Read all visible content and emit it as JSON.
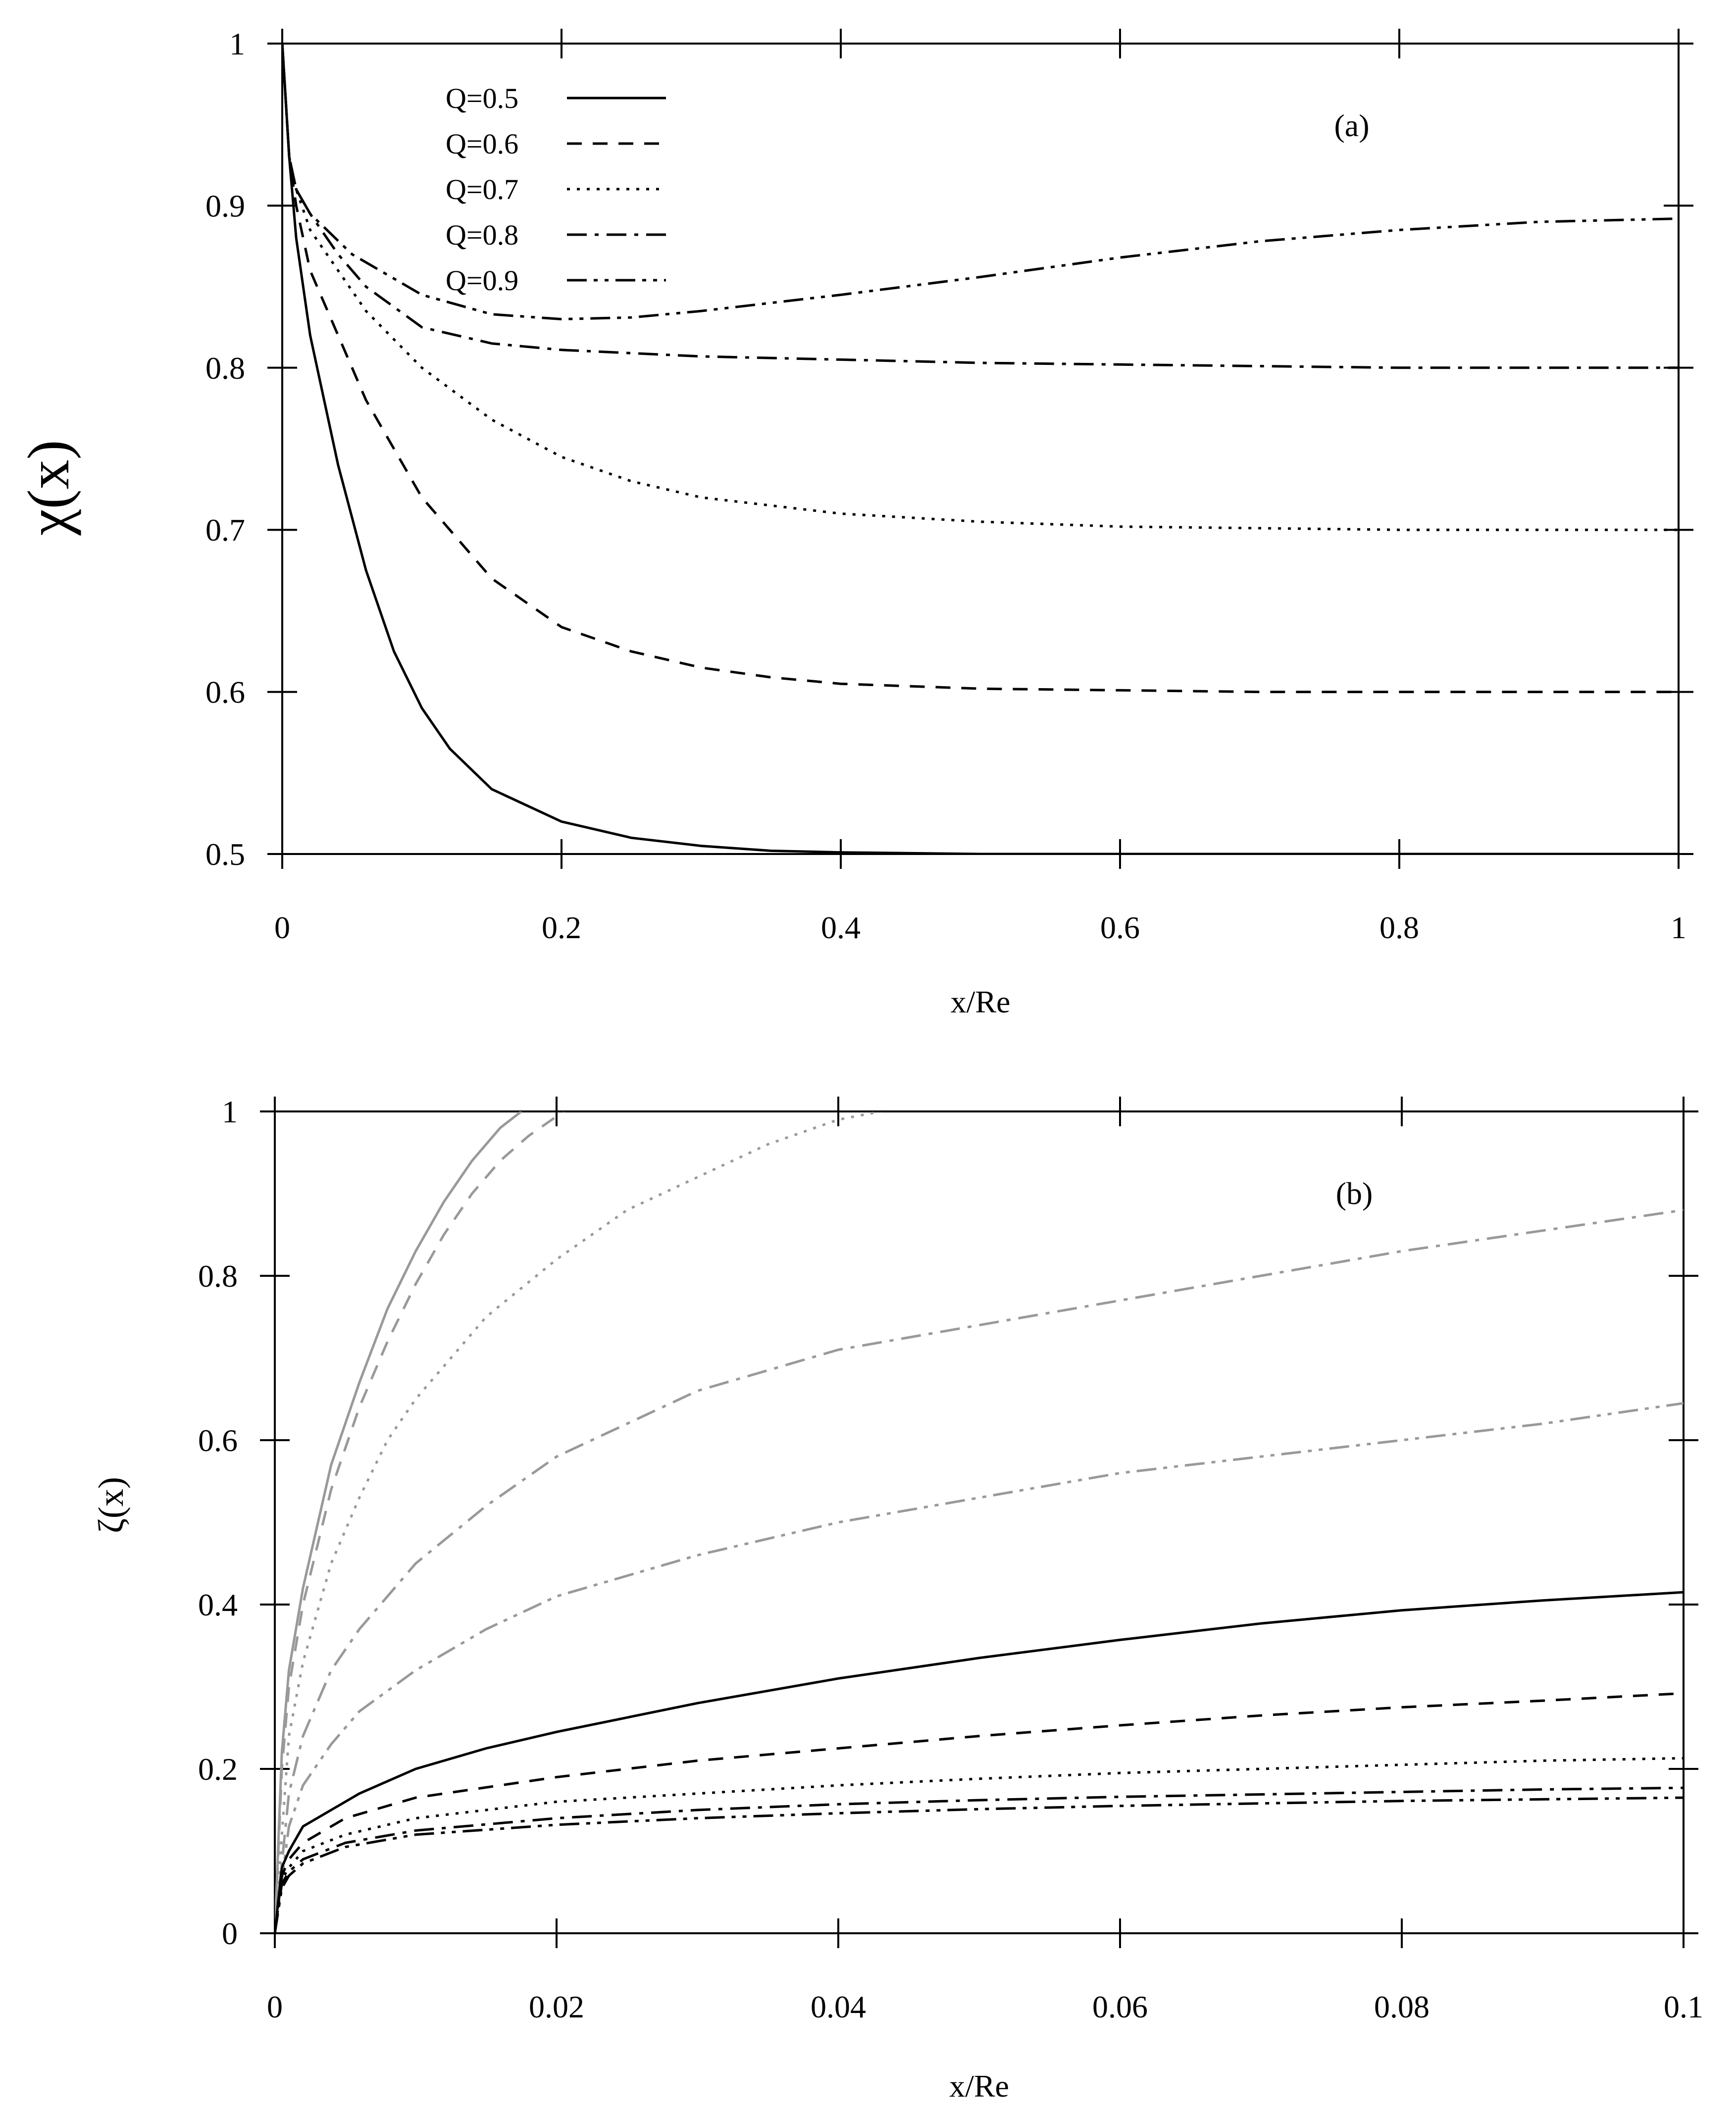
{
  "chart_data": [
    {
      "type": "line",
      "panel_label": "(a)",
      "xlabel": "x/Re",
      "ylabel": "χ(x)",
      "xlim": [
        0,
        1
      ],
      "ylim": [
        0.5,
        1
      ],
      "xticks": [
        "0",
        "0.2",
        "0.4",
        "0.6",
        "0.8",
        "1"
      ],
      "yticks": [
        "0.5",
        "0.6",
        "0.7",
        "0.8",
        "0.9",
        "1"
      ],
      "grid": false,
      "legend_position": "top-left",
      "series": [
        {
          "name": "Q=0.5",
          "style": "solid",
          "color": "#000000",
          "x": [
            0,
            0.005,
            0.01,
            0.02,
            0.04,
            0.06,
            0.08,
            0.1,
            0.12,
            0.15,
            0.2,
            0.25,
            0.3,
            0.35,
            0.4,
            0.5,
            0.6,
            0.7,
            0.8,
            0.9,
            1.0
          ],
          "y": [
            1.0,
            0.93,
            0.88,
            0.82,
            0.74,
            0.675,
            0.625,
            0.59,
            0.565,
            0.54,
            0.52,
            0.51,
            0.505,
            0.502,
            0.501,
            0.5,
            0.5,
            0.5,
            0.5,
            0.5,
            0.5
          ]
        },
        {
          "name": "Q=0.6",
          "style": "dashed",
          "color": "#000000",
          "x": [
            0,
            0.005,
            0.01,
            0.02,
            0.04,
            0.06,
            0.08,
            0.1,
            0.15,
            0.2,
            0.25,
            0.3,
            0.35,
            0.4,
            0.5,
            0.6,
            0.7,
            0.8,
            0.9,
            1.0
          ],
          "y": [
            1.0,
            0.93,
            0.9,
            0.86,
            0.82,
            0.78,
            0.75,
            0.72,
            0.67,
            0.64,
            0.625,
            0.615,
            0.609,
            0.605,
            0.602,
            0.601,
            0.6,
            0.6,
            0.6,
            0.6
          ]
        },
        {
          "name": "Q=0.7",
          "style": "dotted",
          "color": "#000000",
          "x": [
            0,
            0.005,
            0.01,
            0.02,
            0.04,
            0.06,
            0.1,
            0.15,
            0.2,
            0.25,
            0.3,
            0.4,
            0.5,
            0.6,
            0.7,
            0.8,
            0.9,
            1.0
          ],
          "y": [
            1.0,
            0.93,
            0.91,
            0.885,
            0.86,
            0.835,
            0.8,
            0.768,
            0.745,
            0.73,
            0.72,
            0.71,
            0.705,
            0.702,
            0.701,
            0.7,
            0.7,
            0.7
          ]
        },
        {
          "name": "Q=0.8",
          "style": "dashdot",
          "color": "#000000",
          "x": [
            0,
            0.005,
            0.01,
            0.02,
            0.04,
            0.06,
            0.1,
            0.15,
            0.2,
            0.3,
            0.4,
            0.5,
            0.6,
            0.7,
            0.8,
            0.9,
            1.0
          ],
          "y": [
            1.0,
            0.93,
            0.91,
            0.895,
            0.87,
            0.85,
            0.825,
            0.815,
            0.811,
            0.807,
            0.805,
            0.803,
            0.802,
            0.801,
            0.8,
            0.8,
            0.8
          ]
        },
        {
          "name": "Q=0.9",
          "style": "dashdotdot",
          "color": "#000000",
          "x": [
            0,
            0.005,
            0.01,
            0.02,
            0.05,
            0.1,
            0.15,
            0.2,
            0.25,
            0.3,
            0.4,
            0.5,
            0.6,
            0.7,
            0.8,
            0.9,
            1.0
          ],
          "y": [
            1.0,
            0.93,
            0.91,
            0.895,
            0.87,
            0.845,
            0.833,
            0.83,
            0.831,
            0.835,
            0.845,
            0.856,
            0.868,
            0.878,
            0.885,
            0.89,
            0.892
          ]
        }
      ]
    },
    {
      "type": "line",
      "panel_label": "(b)",
      "xlabel": "x/Re",
      "ylabel": "ζ(x)",
      "xlim": [
        0,
        0.1
      ],
      "ylim": [
        0,
        1
      ],
      "xticks": [
        "0",
        "0.02",
        "0.04",
        "0.06",
        "0.08",
        "0.1"
      ],
      "yticks": [
        "0",
        "0.2",
        "0.4",
        "0.6",
        "0.8",
        "1"
      ],
      "grid": false,
      "series": [
        {
          "name": "grey solid",
          "style": "solid",
          "color": "#999999",
          "x": [
            0,
            0.0005,
            0.001,
            0.002,
            0.004,
            0.006,
            0.008,
            0.01,
            0.012,
            0.014,
            0.016,
            0.0175
          ],
          "y": [
            0,
            0.22,
            0.32,
            0.42,
            0.57,
            0.67,
            0.76,
            0.83,
            0.89,
            0.94,
            0.98,
            1.0
          ]
        },
        {
          "name": "grey dashed",
          "style": "dashed",
          "color": "#999999",
          "x": [
            0,
            0.0005,
            0.001,
            0.002,
            0.004,
            0.006,
            0.008,
            0.01,
            0.012,
            0.014,
            0.016,
            0.018,
            0.0205
          ],
          "y": [
            0,
            0.2,
            0.3,
            0.4,
            0.54,
            0.64,
            0.72,
            0.79,
            0.85,
            0.9,
            0.94,
            0.97,
            1.0
          ]
        },
        {
          "name": "grey dotted",
          "style": "dotted",
          "color": "#999999",
          "x": [
            0,
            0.001,
            0.002,
            0.004,
            0.006,
            0.008,
            0.01,
            0.015,
            0.02,
            0.025,
            0.03,
            0.035,
            0.04,
            0.043
          ],
          "y": [
            0,
            0.24,
            0.33,
            0.45,
            0.53,
            0.6,
            0.65,
            0.75,
            0.82,
            0.88,
            0.92,
            0.96,
            0.99,
            1.0
          ]
        },
        {
          "name": "grey dashdot",
          "style": "dashdot",
          "color": "#999999",
          "x": [
            0,
            0.001,
            0.002,
            0.004,
            0.006,
            0.01,
            0.015,
            0.02,
            0.03,
            0.04,
            0.05,
            0.06,
            0.07,
            0.08,
            0.09,
            0.1
          ],
          "y": [
            0,
            0.17,
            0.24,
            0.32,
            0.37,
            0.45,
            0.52,
            0.58,
            0.66,
            0.71,
            0.74,
            0.77,
            0.8,
            0.83,
            0.855,
            0.88
          ]
        },
        {
          "name": "grey dashdotdot",
          "style": "dashdotdot",
          "color": "#999999",
          "x": [
            0,
            0.001,
            0.002,
            0.004,
            0.006,
            0.01,
            0.015,
            0.02,
            0.03,
            0.04,
            0.05,
            0.06,
            0.07,
            0.08,
            0.09,
            0.1
          ],
          "y": [
            0,
            0.13,
            0.18,
            0.23,
            0.27,
            0.32,
            0.37,
            0.41,
            0.46,
            0.5,
            0.53,
            0.56,
            0.58,
            0.6,
            0.62,
            0.645
          ]
        },
        {
          "name": "black solid",
          "style": "solid",
          "color": "#000000",
          "x": [
            0,
            0.0005,
            0.001,
            0.002,
            0.004,
            0.006,
            0.01,
            0.015,
            0.02,
            0.03,
            0.04,
            0.05,
            0.06,
            0.07,
            0.08,
            0.09,
            0.1
          ],
          "y": [
            0,
            0.08,
            0.1,
            0.13,
            0.15,
            0.17,
            0.2,
            0.225,
            0.245,
            0.28,
            0.31,
            0.335,
            0.357,
            0.377,
            0.393,
            0.405,
            0.415
          ]
        },
        {
          "name": "black dashed",
          "style": "dashed",
          "color": "#000000",
          "x": [
            0,
            0.0005,
            0.001,
            0.002,
            0.005,
            0.01,
            0.02,
            0.03,
            0.04,
            0.05,
            0.06,
            0.07,
            0.08,
            0.09,
            0.1
          ],
          "y": [
            0,
            0.07,
            0.09,
            0.11,
            0.14,
            0.165,
            0.19,
            0.21,
            0.225,
            0.24,
            0.253,
            0.265,
            0.275,
            0.283,
            0.292
          ]
        },
        {
          "name": "black dotted",
          "style": "dotted",
          "color": "#000000",
          "x": [
            0,
            0.0005,
            0.001,
            0.002,
            0.005,
            0.01,
            0.02,
            0.03,
            0.04,
            0.05,
            0.06,
            0.07,
            0.08,
            0.09,
            0.1
          ],
          "y": [
            0,
            0.065,
            0.08,
            0.1,
            0.12,
            0.14,
            0.16,
            0.17,
            0.18,
            0.188,
            0.195,
            0.2,
            0.205,
            0.21,
            0.213
          ]
        },
        {
          "name": "black dashdot",
          "style": "dashdot",
          "color": "#000000",
          "x": [
            0,
            0.0005,
            0.001,
            0.002,
            0.005,
            0.01,
            0.02,
            0.03,
            0.04,
            0.05,
            0.06,
            0.07,
            0.08,
            0.09,
            0.1
          ],
          "y": [
            0,
            0.06,
            0.075,
            0.09,
            0.11,
            0.125,
            0.14,
            0.15,
            0.157,
            0.162,
            0.166,
            0.169,
            0.172,
            0.175,
            0.177
          ]
        },
        {
          "name": "black dashdotdot",
          "style": "dashdotdot",
          "color": "#000000",
          "x": [
            0,
            0.0005,
            0.001,
            0.002,
            0.005,
            0.01,
            0.02,
            0.03,
            0.04,
            0.05,
            0.06,
            0.07,
            0.08,
            0.09,
            0.1
          ],
          "y": [
            0,
            0.055,
            0.07,
            0.085,
            0.105,
            0.12,
            0.132,
            0.14,
            0.146,
            0.151,
            0.155,
            0.158,
            0.161,
            0.163,
            0.165
          ]
        }
      ]
    }
  ]
}
